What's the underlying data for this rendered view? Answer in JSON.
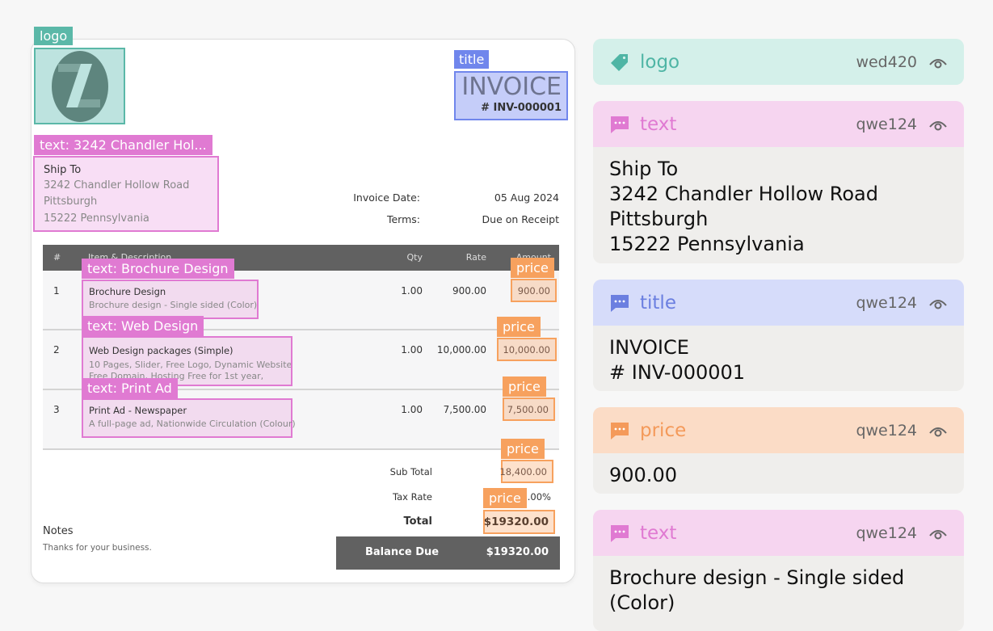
{
  "invoice": {
    "title": "INVOICE",
    "number": "# INV-000001",
    "ship_to": {
      "heading": "Ship To",
      "lines": [
        "3242 Chandler Hollow Road",
        "Pittsburgh",
        "15222 Pennsylvania"
      ]
    },
    "meta": [
      {
        "label": "Invoice Date:",
        "value": "05 Aug 2024"
      },
      {
        "label": "Terms:",
        "value": "Due on Receipt"
      }
    ],
    "columns": [
      "#",
      "Item & Description",
      "Qty",
      "Rate",
      "Amount"
    ],
    "items": [
      {
        "no": "1",
        "name": "Brochure Design",
        "desc": [
          "Brochure design - Single sided (Color)"
        ],
        "qty": "1.00",
        "rate": "900.00",
        "amount": "900.00"
      },
      {
        "no": "2",
        "name": "Web Design packages (Simple)",
        "desc": [
          "10 Pages, Slider, Free Logo, Dynamic Website,",
          "Free Domain, Hosting Free for 1st year,"
        ],
        "qty": "1.00",
        "rate": "10,000.00",
        "amount": "10,000.00"
      },
      {
        "no": "3",
        "name": "Print Ad - Newspaper",
        "desc": [
          "A full-page ad, Nationwide Circulation (Colour)"
        ],
        "qty": "1.00",
        "rate": "7,500.00",
        "amount": "7,500.00"
      }
    ],
    "subtotal_label": "Sub Total",
    "subtotal": "18,400.00",
    "tax_label": "Tax Rate",
    "tax": "5.00%",
    "total_label": "Total",
    "total": "$19320.00",
    "balance_label": "Balance Due",
    "balance": "$19320.00",
    "notes_label": "Notes",
    "notes": "Thanks for your business."
  },
  "overlays": {
    "logo": "logo",
    "title": "title",
    "price": "price",
    "ship": "text: 3242 Chandler Hol...",
    "item1": "text: Brochure Design",
    "item2": "text: Web Design",
    "item3": "text: Print Ad"
  },
  "panels": [
    {
      "type": "logo",
      "id": "wed420",
      "color": "#4fb5a5",
      "bg": "#d4f0ea",
      "icon": "tag-icon"
    },
    {
      "type": "text",
      "id": "qwe124",
      "color": "#e07ad2",
      "bg": "#f6d5f0",
      "icon": "comment-icon",
      "body": [
        "Ship To",
        "3242 Chandler Hollow Road",
        "Pittsburgh",
        "15222 Pennsylvania"
      ]
    },
    {
      "type": "title",
      "id": "qwe124",
      "color": "#6b7fe0",
      "bg": "#d6dcfa",
      "icon": "comment-icon",
      "body": [
        "INVOICE",
        "# INV-000001"
      ]
    },
    {
      "type": "price",
      "id": "qwe124",
      "color": "#f49a5a",
      "bg": "#fbdcc6",
      "icon": "comment-icon",
      "body": [
        "900.00"
      ]
    },
    {
      "type": "text",
      "id": "qwe124",
      "color": "#e07ad2",
      "bg": "#f6d5f0",
      "icon": "comment-icon",
      "body": [
        "Brochure design - Single sided",
        "(Color)"
      ]
    }
  ]
}
